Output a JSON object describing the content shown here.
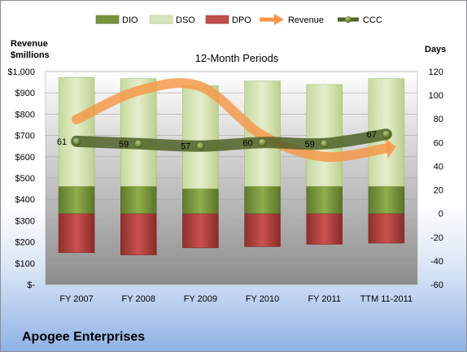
{
  "company": "Apogee Enterprises",
  "chart_data": {
    "type": "bar",
    "title": "12-Month Periods",
    "y_left_label": [
      "Revenue",
      "$millions"
    ],
    "y_right_label": "Days",
    "categories": [
      "FY 2007",
      "FY 2008",
      "FY 2009",
      "FY 2010",
      "FY 2011",
      "TTM 11-2011"
    ],
    "y_left_range": [
      0,
      1000
    ],
    "y_left_ticks": [
      "$-",
      "$100",
      "$200",
      "$300",
      "$400",
      "$500",
      "$600",
      "$700",
      "$800",
      "$900",
      "$1,000"
    ],
    "y_right_range": [
      -60,
      120
    ],
    "y_right_ticks": [
      "-60",
      "-40",
      "-20",
      "0",
      "20",
      "40",
      "60",
      "80",
      "100",
      "120"
    ],
    "legend": [
      "DIO",
      "DSO",
      "DPO",
      "Revenue",
      "CCC"
    ],
    "series": [
      {
        "name": "DIO",
        "axis": "right",
        "color": "#77933c",
        "values": [
          23,
          23,
          21,
          23,
          23,
          23
        ]
      },
      {
        "name": "DSO",
        "axis": "right",
        "color": "#d7e4bd",
        "values": [
          92,
          91,
          87,
          89,
          86,
          91
        ]
      },
      {
        "name": "DPO",
        "axis": "right",
        "color": "#c0504d",
        "values": [
          -33,
          -35,
          -29,
          -28,
          -26,
          -25
        ]
      },
      {
        "name": "Revenue",
        "axis": "left",
        "color": "#f79646",
        "values": [
          775,
          910,
          930,
          700,
          600,
          640
        ]
      },
      {
        "name": "CCC",
        "axis": "right",
        "color": "#4f6228",
        "values": [
          61,
          59,
          57,
          60,
          59,
          67
        ]
      }
    ],
    "ccc_labels": [
      "61",
      "59",
      "57",
      "60",
      "59",
      "67"
    ],
    "grid": true,
    "legend_position": "top"
  }
}
